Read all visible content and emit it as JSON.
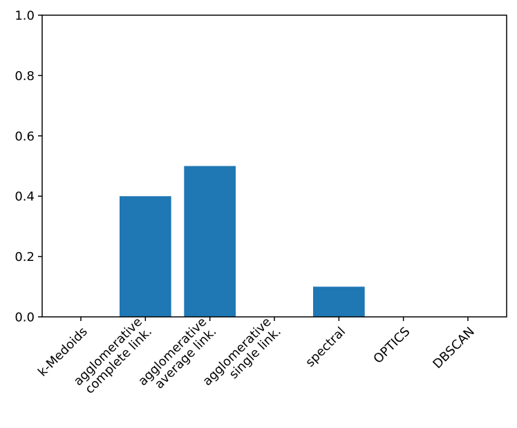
{
  "chart_data": {
    "type": "bar",
    "title": "",
    "xlabel": "",
    "ylabel": "",
    "categories": [
      [
        "k-Medoids"
      ],
      [
        "agglomerative",
        "complete link."
      ],
      [
        "agglomerative",
        "average link."
      ],
      [
        "agglomerative",
        "single link."
      ],
      [
        "spectral"
      ],
      [
        "OPTICS"
      ],
      [
        "DBSCAN"
      ]
    ],
    "values": [
      0.0,
      0.4,
      0.5,
      0.0,
      0.1,
      0.0,
      0.0
    ],
    "ylim": [
      0,
      1.0
    ],
    "yticks": [
      "0.0",
      "0.2",
      "0.4",
      "0.6",
      "0.8",
      "1.0"
    ],
    "bar_color": "#1f77b4",
    "grid": false,
    "legend": "none"
  }
}
